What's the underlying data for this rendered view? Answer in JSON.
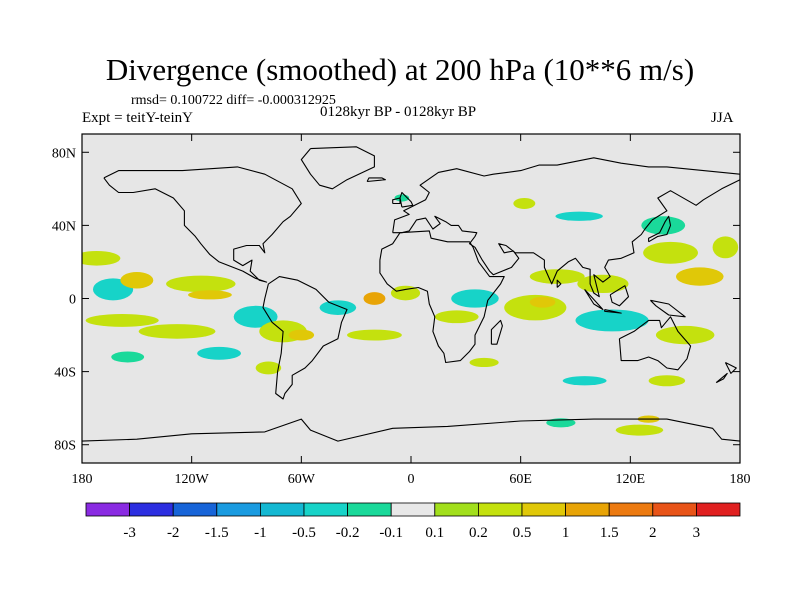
{
  "title": "Divergence (smoothed) at 200 hPa (10**6 m/s)",
  "stats_line": "rmsd= 0.100722 diff= -0.000312925",
  "experiment": "Expt = teitY-teinY",
  "period": "0128kyr BP - 0128kyr BP",
  "season": "JJA",
  "axes": {
    "lat_labels": [
      {
        "lat": 80,
        "label": "80N"
      },
      {
        "lat": 40,
        "label": "40N"
      },
      {
        "lat": 0,
        "label": "0"
      },
      {
        "lat": -40,
        "label": "40S"
      },
      {
        "lat": -80,
        "label": "80S"
      }
    ],
    "lon_labels": [
      {
        "lon": -180,
        "label": "180"
      },
      {
        "lon": -120,
        "label": "120W"
      },
      {
        "lon": -60,
        "label": "60W"
      },
      {
        "lon": 0,
        "label": "0"
      },
      {
        "lon": 60,
        "label": "60E"
      },
      {
        "lon": 120,
        "label": "120E"
      },
      {
        "lon": 180,
        "label": "180"
      }
    ]
  },
  "colorbar": {
    "colors": [
      "#8a2be2",
      "#2c2ee0",
      "#1764d8",
      "#1a9be0",
      "#14b8d2",
      "#17d3c8",
      "#1ad99a",
      "#e8e8e8",
      "#a2df1c",
      "#c4e10e",
      "#e0c808",
      "#e8a406",
      "#ec7a10",
      "#e85418",
      "#e02020"
    ],
    "labels": [
      "-3",
      "-2",
      "-1.5",
      "-1",
      "-0.5",
      "-0.2",
      "-0.1",
      "0.1",
      "0.2",
      "0.5",
      "1",
      "1.5",
      "2",
      "3"
    ]
  },
  "field_patches": [
    {
      "lon": -172,
      "lat": 22,
      "w": 26,
      "h": 8,
      "level": 0.2
    },
    {
      "lon": -163,
      "lat": 5,
      "w": 22,
      "h": 12,
      "level": -0.5
    },
    {
      "lon": -150,
      "lat": 10,
      "w": 18,
      "h": 9,
      "level": 0.5
    },
    {
      "lon": -158,
      "lat": -12,
      "w": 40,
      "h": 7,
      "level": 0.2
    },
    {
      "lon": -128,
      "lat": -18,
      "w": 42,
      "h": 8,
      "level": 0.2
    },
    {
      "lon": -115,
      "lat": 8,
      "w": 38,
      "h": 9,
      "level": 0.2
    },
    {
      "lon": -110,
      "lat": 2,
      "w": 24,
      "h": 5,
      "level": 0.5
    },
    {
      "lon": -85,
      "lat": -10,
      "w": 24,
      "h": 12,
      "level": -0.5
    },
    {
      "lon": -70,
      "lat": -18,
      "w": 26,
      "h": 12,
      "level": 0.2
    },
    {
      "lon": -60,
      "lat": -20,
      "w": 14,
      "h": 6,
      "level": 0.5
    },
    {
      "lon": -40,
      "lat": -5,
      "w": 20,
      "h": 8,
      "level": -0.5
    },
    {
      "lon": -20,
      "lat": -20,
      "w": 30,
      "h": 6,
      "level": 0.2
    },
    {
      "lon": -20,
      "lat": 0,
      "w": 12,
      "h": 7,
      "level": 1
    },
    {
      "lon": -3,
      "lat": 3,
      "w": 16,
      "h": 8,
      "level": 0.2
    },
    {
      "lon": 25,
      "lat": -10,
      "w": 24,
      "h": 7,
      "level": 0.2
    },
    {
      "lon": 35,
      "lat": 0,
      "w": 26,
      "h": 10,
      "level": -0.5
    },
    {
      "lon": 68,
      "lat": -5,
      "w": 34,
      "h": 14,
      "level": 0.2
    },
    {
      "lon": 72,
      "lat": -2,
      "w": 14,
      "h": 6,
      "level": 0.5
    },
    {
      "lon": 80,
      "lat": 12,
      "w": 30,
      "h": 8,
      "level": 0.2
    },
    {
      "lon": 105,
      "lat": 8,
      "w": 28,
      "h": 10,
      "level": 0.2
    },
    {
      "lon": 110,
      "lat": -12,
      "w": 40,
      "h": 12,
      "level": -0.5
    },
    {
      "lon": 150,
      "lat": -20,
      "w": 32,
      "h": 10,
      "level": 0.2
    },
    {
      "lon": 158,
      "lat": 12,
      "w": 26,
      "h": 10,
      "level": 0.5
    },
    {
      "lon": 142,
      "lat": 25,
      "w": 30,
      "h": 12,
      "level": 0.2
    },
    {
      "lon": 138,
      "lat": 40,
      "w": 24,
      "h": 10,
      "level": -0.2
    },
    {
      "lon": 172,
      "lat": 28,
      "w": 14,
      "h": 12,
      "level": 0.2
    },
    {
      "lon": 92,
      "lat": 45,
      "w": 26,
      "h": 5,
      "level": -0.5
    },
    {
      "lon": 62,
      "lat": 52,
      "w": 12,
      "h": 6,
      "level": 0.2
    },
    {
      "lon": -105,
      "lat": -30,
      "w": 24,
      "h": 7,
      "level": -0.5
    },
    {
      "lon": -78,
      "lat": -38,
      "w": 14,
      "h": 7,
      "level": 0.2
    },
    {
      "lon": -155,
      "lat": -32,
      "w": 18,
      "h": 6,
      "level": -0.2
    },
    {
      "lon": 40,
      "lat": -35,
      "w": 16,
      "h": 5,
      "level": 0.2
    },
    {
      "lon": 95,
      "lat": -45,
      "w": 24,
      "h": 5,
      "level": -0.5
    },
    {
      "lon": 140,
      "lat": -45,
      "w": 20,
      "h": 6,
      "level": 0.2
    },
    {
      "lon": 82,
      "lat": -68,
      "w": 16,
      "h": 5,
      "level": -0.2
    },
    {
      "lon": 125,
      "lat": -72,
      "w": 26,
      "h": 6,
      "level": 0.2
    },
    {
      "lon": 130,
      "lat": -66,
      "w": 12,
      "h": 4,
      "level": 0.5
    },
    {
      "lon": -5,
      "lat": 55,
      "w": 8,
      "h": 4,
      "level": -0.2
    }
  ]
}
